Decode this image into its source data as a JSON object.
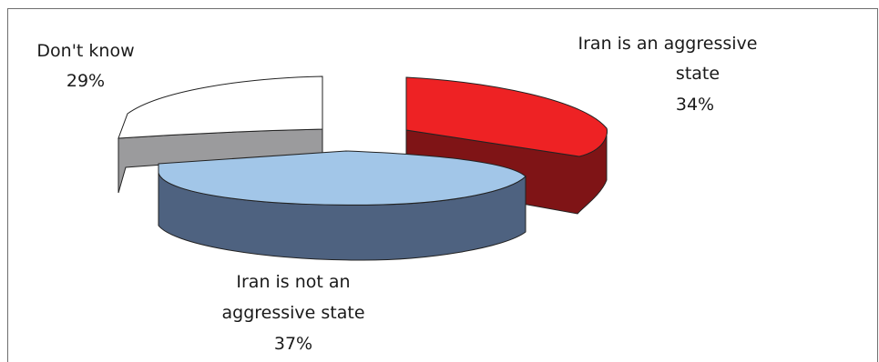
{
  "chart_data": {
    "type": "pie",
    "style": "3d-exploded",
    "title": "",
    "slices": [
      {
        "label": "Iran is an aggressive state",
        "value": 34,
        "value_label": "34%",
        "color": "#ee2224",
        "side_color": "#7f1416"
      },
      {
        "label": "Iran is not an aggressive state",
        "value": 37,
        "value_label": "37%",
        "color": "#a2c6e8",
        "side_color": "#4e6280"
      },
      {
        "label": "Don't know",
        "value": 29,
        "value_label": "29%",
        "color": "#ffffff",
        "side_color": "#9b9b9d"
      }
    ]
  },
  "labels": {
    "aggressive_line1": "Iran is an aggressive",
    "aggressive_line2": "state",
    "not_aggressive_line1": "Iran is not an",
    "not_aggressive_line2": "aggressive state",
    "dont_know_line1": "Don't know"
  }
}
